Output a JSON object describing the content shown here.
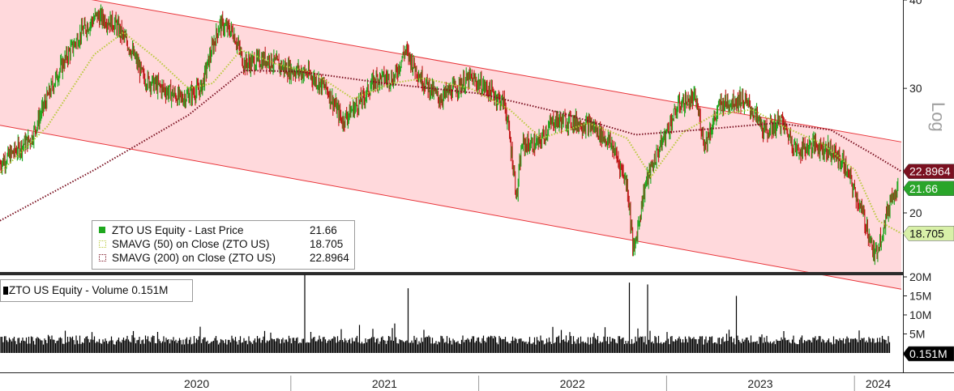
{
  "chart_data": {
    "type": "line",
    "colors": {
      "background": "#ffffff",
      "channel_fill": "#ffd9dc",
      "channel_line": "#e8353a",
      "price_up": "#1fa81f",
      "price_down": "#c01818",
      "sma50": "#b8c93a",
      "sma200": "#7a1020",
      "volume": "#000000",
      "tag_last": "#2aa52a",
      "tag_sma50": "#d8f0a8",
      "tag_sma200": "#7a1020"
    },
    "price_axis": {
      "scale": "log",
      "ylim": [
        16.5,
        40
      ],
      "ticks": [
        "20",
        "30",
        "40"
      ],
      "label": "Log"
    },
    "volume_axis": {
      "ylim": [
        0,
        20
      ],
      "ticks": [
        "5M",
        "10M",
        "15M",
        "20M"
      ]
    },
    "x_axis": {
      "range": [
        "2019-06-15",
        "2024-03-31"
      ],
      "ticks": [
        "2020",
        "2021",
        "2022",
        "2023",
        "2024"
      ]
    },
    "channel": {
      "upper": [
        {
          "x": "2019-06-15",
          "y": 42.2
        },
        {
          "x": "2024-03-31",
          "y": 25.2
        }
      ],
      "lower": [
        {
          "x": "2019-06-15",
          "y": 26.6
        },
        {
          "x": "2024-03-31",
          "y": 15.6
        }
      ]
    },
    "series": [
      {
        "name": "ZTO US Equity - Last Price",
        "value": "21.66",
        "points": [
          {
            "x": "2019-06-15",
            "y": 23.5
          },
          {
            "x": "2019-08-15",
            "y": 25.5
          },
          {
            "x": "2019-10-10",
            "y": 32
          },
          {
            "x": "2019-11-20",
            "y": 36
          },
          {
            "x": "2019-12-20",
            "y": 38
          },
          {
            "x": "2020-01-25",
            "y": 37
          },
          {
            "x": "2020-02-25",
            "y": 34
          },
          {
            "x": "2020-03-20",
            "y": 31
          },
          {
            "x": "2020-04-25",
            "y": 30
          },
          {
            "x": "2020-06-01",
            "y": 29
          },
          {
            "x": "2020-07-10",
            "y": 30
          },
          {
            "x": "2020-08-15",
            "y": 37
          },
          {
            "x": "2020-09-10",
            "y": 36
          },
          {
            "x": "2020-10-01",
            "y": 32.5
          },
          {
            "x": "2020-11-15",
            "y": 33
          },
          {
            "x": "2020-12-20",
            "y": 32
          },
          {
            "x": "2021-02-01",
            "y": 31.5
          },
          {
            "x": "2021-03-10",
            "y": 30
          },
          {
            "x": "2021-04-10",
            "y": 27
          },
          {
            "x": "2021-05-20",
            "y": 29
          },
          {
            "x": "2021-06-15",
            "y": 31
          },
          {
            "x": "2021-07-20",
            "y": 31
          },
          {
            "x": "2021-08-10",
            "y": 34
          },
          {
            "x": "2021-09-10",
            "y": 31
          },
          {
            "x": "2021-10-15",
            "y": 29
          },
          {
            "x": "2021-12-15",
            "y": 31
          },
          {
            "x": "2022-01-15",
            "y": 30
          },
          {
            "x": "2022-02-20",
            "y": 28.5
          },
          {
            "x": "2022-03-15",
            "y": 21
          },
          {
            "x": "2022-03-25",
            "y": 25
          },
          {
            "x": "2022-04-25",
            "y": 25
          },
          {
            "x": "2022-05-25",
            "y": 27
          },
          {
            "x": "2022-06-25",
            "y": 27
          },
          {
            "x": "2022-08-10",
            "y": 26.5
          },
          {
            "x": "2022-09-15",
            "y": 25
          },
          {
            "x": "2022-10-15",
            "y": 22
          },
          {
            "x": "2022-10-28",
            "y": 17.5
          },
          {
            "x": "2022-11-20",
            "y": 22
          },
          {
            "x": "2022-12-20",
            "y": 25
          },
          {
            "x": "2023-01-25",
            "y": 28.5
          },
          {
            "x": "2023-02-25",
            "y": 29
          },
          {
            "x": "2023-03-15",
            "y": 25
          },
          {
            "x": "2023-04-15",
            "y": 28.5
          },
          {
            "x": "2023-05-25",
            "y": 29
          },
          {
            "x": "2023-06-15",
            "y": 28
          },
          {
            "x": "2023-07-10",
            "y": 26
          },
          {
            "x": "2023-08-10",
            "y": 27
          },
          {
            "x": "2023-09-10",
            "y": 24.5
          },
          {
            "x": "2023-10-15",
            "y": 25
          },
          {
            "x": "2023-11-15",
            "y": 24.5
          },
          {
            "x": "2023-12-10",
            "y": 23.5
          },
          {
            "x": "2024-01-05",
            "y": 21
          },
          {
            "x": "2024-01-25",
            "y": 19
          },
          {
            "x": "2024-02-08",
            "y": 17.3
          },
          {
            "x": "2024-02-25",
            "y": 19
          },
          {
            "x": "2024-03-15",
            "y": 21.5
          },
          {
            "x": "2024-03-25",
            "y": 21.66
          }
        ]
      },
      {
        "name": "SMAVG (50)  on Close (ZTO US)",
        "value": "18.705",
        "points": [
          {
            "x": "2019-06-15",
            "y": 22.8
          },
          {
            "x": "2019-09-15",
            "y": 26.5
          },
          {
            "x": "2019-12-15",
            "y": 33.5
          },
          {
            "x": "2020-02-10",
            "y": 36
          },
          {
            "x": "2020-04-15",
            "y": 33
          },
          {
            "x": "2020-06-15",
            "y": 30
          },
          {
            "x": "2020-08-01",
            "y": 30.5
          },
          {
            "x": "2020-09-25",
            "y": 34
          },
          {
            "x": "2020-12-01",
            "y": 32.5
          },
          {
            "x": "2021-02-15",
            "y": 31.5
          },
          {
            "x": "2021-05-01",
            "y": 29
          },
          {
            "x": "2021-07-15",
            "y": 30.5
          },
          {
            "x": "2021-09-15",
            "y": 31
          },
          {
            "x": "2021-12-15",
            "y": 30
          },
          {
            "x": "2022-03-01",
            "y": 28
          },
          {
            "x": "2022-05-01",
            "y": 25.5
          },
          {
            "x": "2022-08-01",
            "y": 26.8
          },
          {
            "x": "2022-10-15",
            "y": 25.5
          },
          {
            "x": "2022-12-01",
            "y": 22.5
          },
          {
            "x": "2023-02-01",
            "y": 26
          },
          {
            "x": "2023-04-01",
            "y": 27.5
          },
          {
            "x": "2023-06-15",
            "y": 28
          },
          {
            "x": "2023-08-15",
            "y": 26.5
          },
          {
            "x": "2023-11-01",
            "y": 25
          },
          {
            "x": "2024-01-01",
            "y": 23
          },
          {
            "x": "2024-02-15",
            "y": 19.5
          },
          {
            "x": "2024-03-31",
            "y": 18.705
          }
        ]
      },
      {
        "name": "SMAVG (200)  on Close (ZTO US)",
        "value": "22.8964",
        "points": [
          {
            "x": "2019-06-15",
            "y": 19.5
          },
          {
            "x": "2019-12-15",
            "y": 23
          },
          {
            "x": "2020-06-15",
            "y": 27.5
          },
          {
            "x": "2020-10-01",
            "y": 31.8
          },
          {
            "x": "2021-01-15",
            "y": 31.7
          },
          {
            "x": "2021-07-01",
            "y": 30.5
          },
          {
            "x": "2022-01-01",
            "y": 29.5
          },
          {
            "x": "2022-06-01",
            "y": 27.8
          },
          {
            "x": "2022-11-01",
            "y": 25.8
          },
          {
            "x": "2023-03-01",
            "y": 26.2
          },
          {
            "x": "2023-08-01",
            "y": 26.8
          },
          {
            "x": "2023-11-15",
            "y": 26.2
          },
          {
            "x": "2024-02-01",
            "y": 24.3
          },
          {
            "x": "2024-03-31",
            "y": 22.8964
          }
        ]
      },
      {
        "name": "ZTO US Equity - Volume",
        "value": "0.151M",
        "spikes": [
          {
            "x": "2021-01-28",
            "y": 20.5
          },
          {
            "x": "2021-08-15",
            "y": 17
          },
          {
            "x": "2022-10-20",
            "y": 18.5
          },
          {
            "x": "2022-11-25",
            "y": 18
          },
          {
            "x": "2023-05-15",
            "y": 15
          }
        ]
      }
    ]
  }
}
